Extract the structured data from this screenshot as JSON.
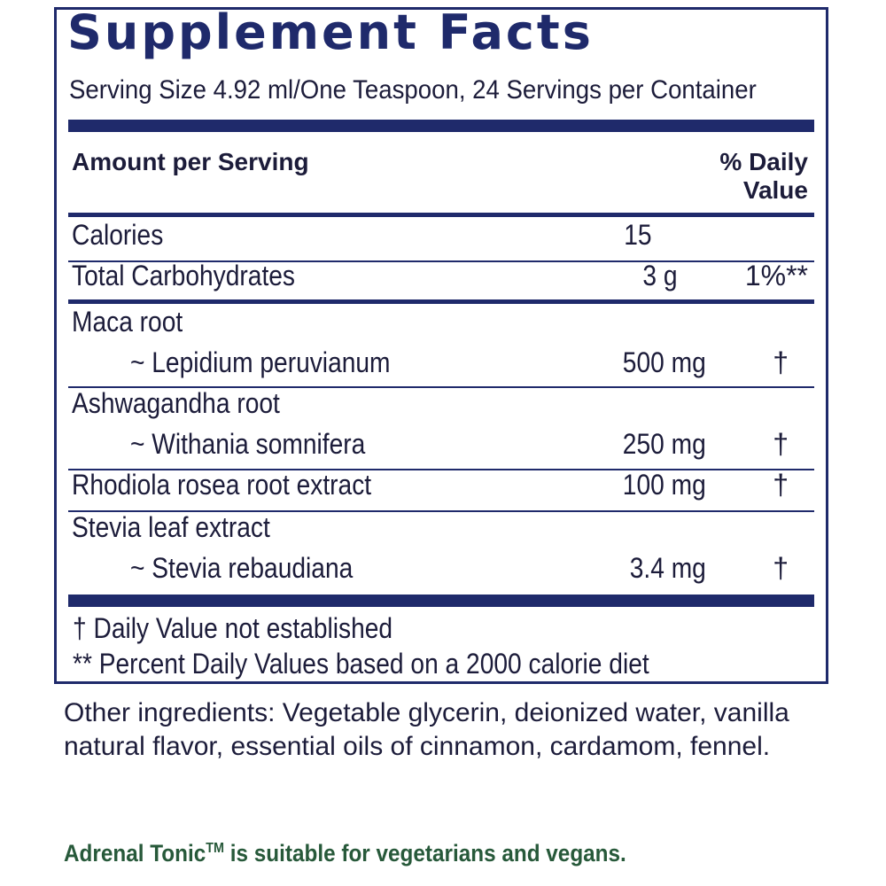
{
  "panel": {
    "title": "Supplement Facts",
    "serving": "Serving Size 4.92 ml/One Teaspoon, 24 Servings per Container",
    "header": {
      "amount": "Amount per Serving",
      "dv_line1": "% Daily",
      "dv_line2": "Value"
    },
    "rows": {
      "calories": {
        "name": "Calories",
        "amount": "15"
      },
      "carbs": {
        "name": "Total Carbohydrates",
        "amount": "3 g",
        "dv": "1%**"
      },
      "maca": {
        "name": "Maca root",
        "sub": "~ Lepidium peruvianum",
        "amount": "500  mg",
        "dv": "†"
      },
      "ashwagandha": {
        "name": "Ashwagandha root",
        "sub": "~ Withania somnifera",
        "amount": "250  mg",
        "dv": "†"
      },
      "rhodiola": {
        "name": "Rhodiola rosea root extract",
        "amount": "100  mg",
        "dv": "†"
      },
      "stevia": {
        "name": "Stevia leaf extract",
        "sub": "~ Stevia rebaudiana",
        "amount": "3.4  mg",
        "dv": "†"
      }
    },
    "footnotes": {
      "dagger": "†  Daily Value not established",
      "stars": "** Percent Daily Values based on a 2000 calorie diet"
    }
  },
  "other_ingredients": "Other ingredients: Vegetable glycerin, deionized water, vanilla natural flavor, essential oils of cinnamon, cardamom, fennel.",
  "note": {
    "product": "Adrenal Tonic",
    "tm": "TM",
    "text": " is suitable for vegetarians and vegans."
  },
  "colors": {
    "panel_blue": "#1f2a6b",
    "note_green": "#27593a"
  }
}
